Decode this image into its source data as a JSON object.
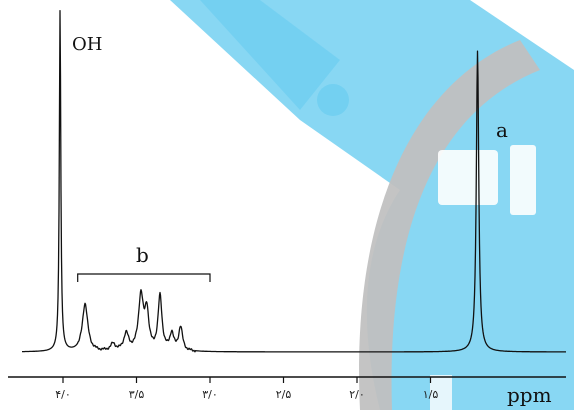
{
  "chart_data": {
    "type": "line",
    "title": "",
    "xlabel": "ppm",
    "ylabel": "",
    "x_reversed": true,
    "xlim": [
      4.2,
      1.0
    ],
    "x_ticks": [
      {
        "value": 4.0,
        "label": "۴/۰"
      },
      {
        "value": 3.5,
        "label": "۳/۵"
      },
      {
        "value": 3.0,
        "label": "۳/۰"
      },
      {
        "value": 2.5,
        "label": "۲/۵"
      },
      {
        "value": 2.0,
        "label": "۲/۰"
      },
      {
        "value": 1.5,
        "label": "۱/۵"
      }
    ],
    "peaks": [
      {
        "ppm": 4.02,
        "height": 1.0,
        "width": 0.006,
        "group": "OH"
      },
      {
        "ppm": 3.85,
        "height": 0.14,
        "width": 0.022,
        "group": "b"
      },
      {
        "ppm": 3.66,
        "height": 0.02,
        "width": 0.02,
        "group": "b"
      },
      {
        "ppm": 3.57,
        "height": 0.05,
        "width": 0.02,
        "group": "b"
      },
      {
        "ppm": 3.47,
        "height": 0.16,
        "width": 0.02,
        "group": "b"
      },
      {
        "ppm": 3.43,
        "height": 0.11,
        "width": 0.016,
        "group": "b"
      },
      {
        "ppm": 3.34,
        "height": 0.16,
        "width": 0.016,
        "group": "b"
      },
      {
        "ppm": 3.26,
        "height": 0.05,
        "width": 0.016,
        "group": "b"
      },
      {
        "ppm": 3.2,
        "height": 0.07,
        "width": 0.016,
        "group": "b"
      },
      {
        "ppm": 1.18,
        "height": 0.88,
        "width": 0.01,
        "group": "a"
      }
    ],
    "annotations": [
      {
        "label": "OH",
        "ppm": 4.0
      },
      {
        "label": "a",
        "ppm": 1.18
      },
      {
        "label": "b",
        "ppm_range": [
          3.9,
          3.0
        ]
      }
    ]
  },
  "axis_label": "ppm",
  "labels": {
    "oh": "OH",
    "a": "a",
    "b": "b"
  },
  "colors": {
    "trace": "#111111",
    "watermark_blue": "#5bc8ef",
    "watermark_gray": "#b5b5b5"
  }
}
